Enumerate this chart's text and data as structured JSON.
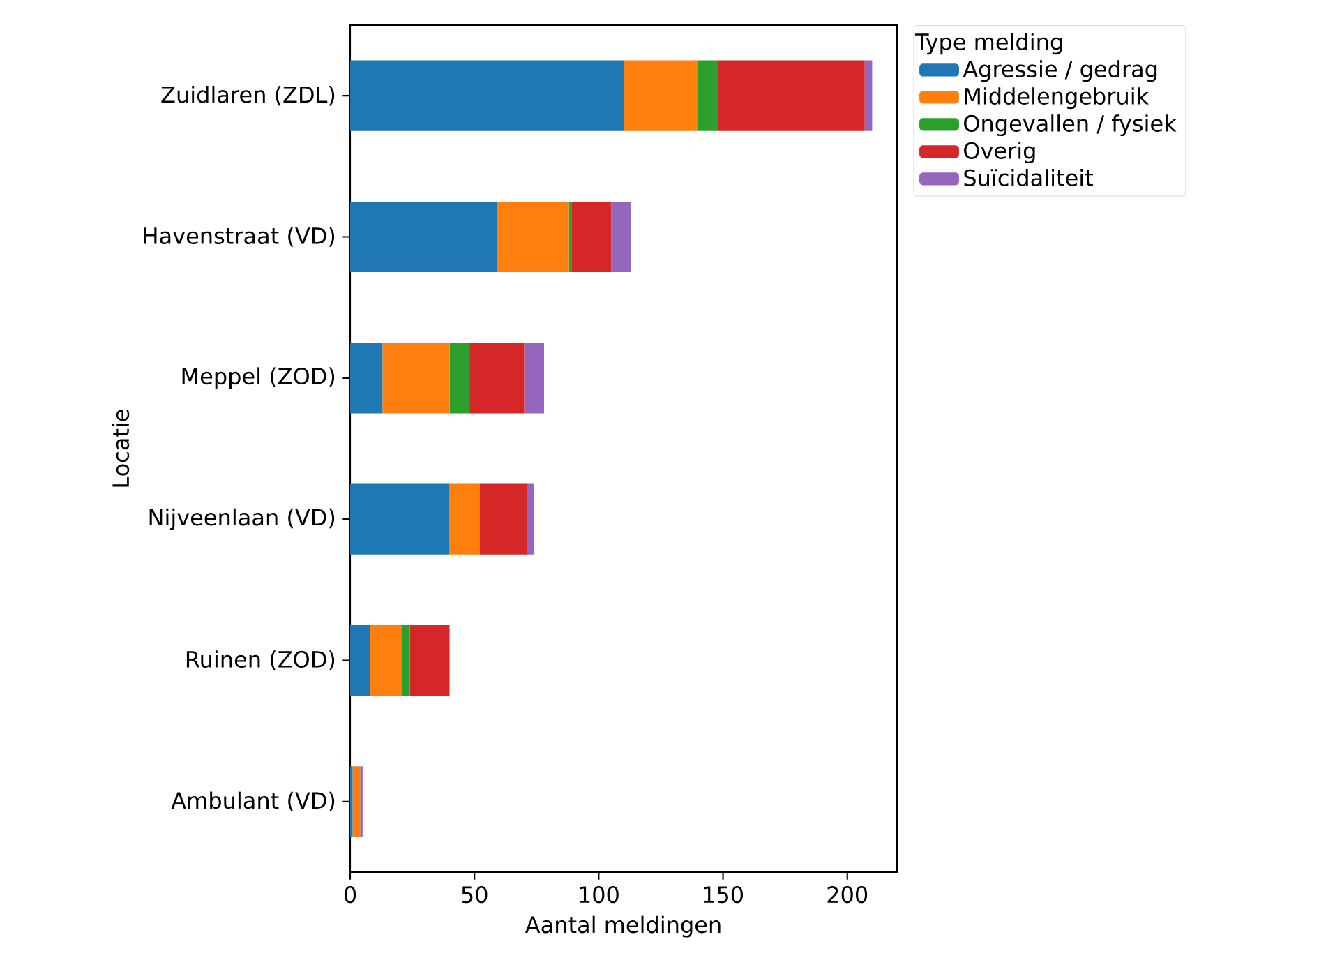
{
  "chart_data": {
    "type": "bar",
    "orientation": "horizontal",
    "stacked": true,
    "xlabel": "Aantal meldingen",
    "ylabel": "Locatie",
    "legend_title": "Type melding",
    "legend": "top right",
    "categories": [
      "Zuidlaren (ZDL)",
      "Havenstraat (VD)",
      "Meppel (ZOD)",
      "Nijveenlaan (VD)",
      "Ruinen (ZOD)",
      "Ambulant (VD)"
    ],
    "series": [
      {
        "name": "Agressie / gedrag",
        "color": "#1f77b4",
        "values": [
          110,
          59,
          13,
          40,
          8,
          1
        ]
      },
      {
        "name": "Middelengebruik",
        "color": "#ff7f0e",
        "values": [
          30,
          29,
          27,
          12,
          13,
          3
        ]
      },
      {
        "name": "Ongevallen / fysiek",
        "color": "#2ca02c",
        "values": [
          8,
          1,
          8,
          0,
          3,
          0
        ]
      },
      {
        "name": "Overig",
        "color": "#d62728",
        "values": [
          59,
          16,
          22,
          19,
          16,
          0
        ]
      },
      {
        "name": "Suïcidaliteit",
        "color": "#9467bd",
        "values": [
          3,
          8,
          8,
          3,
          0,
          1
        ]
      }
    ],
    "xlim": [
      0,
      220
    ],
    "xticks": [
      0,
      50,
      100,
      150,
      200
    ]
  }
}
